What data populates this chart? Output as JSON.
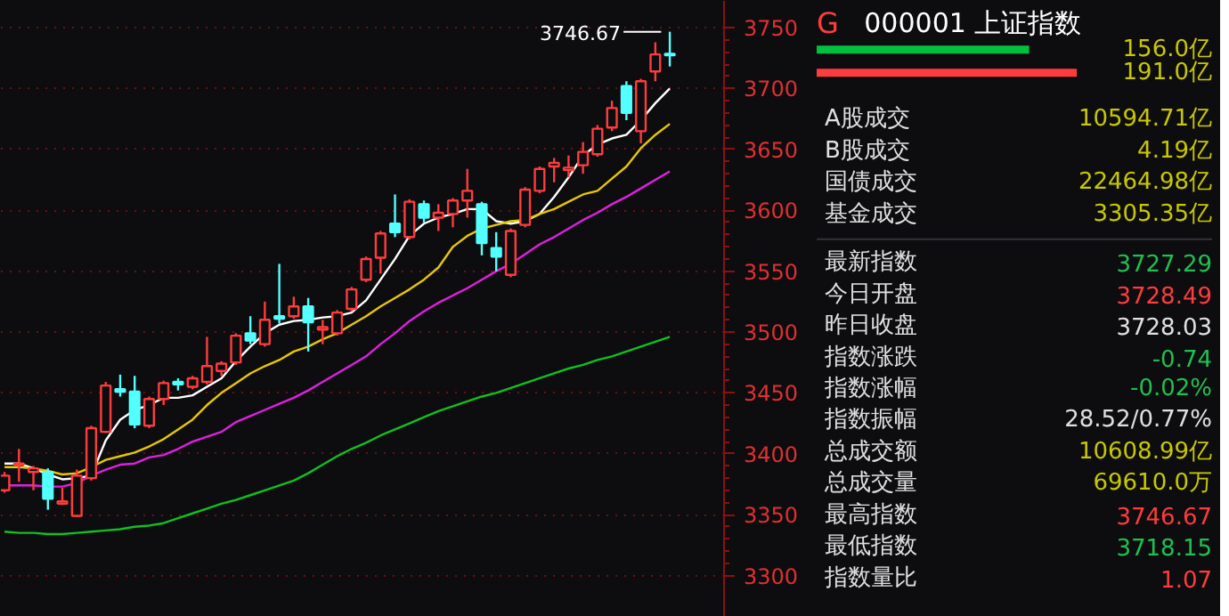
{
  "chart_data": [
    {
      "type": "candlestick",
      "categories": [
        null,
        null,
        null,
        null,
        null,
        null,
        null,
        null,
        null,
        null,
        null,
        null,
        null,
        null,
        null,
        null,
        null,
        null,
        null,
        null,
        null,
        null,
        null,
        null,
        null,
        null,
        null,
        null,
        null,
        null,
        null,
        null,
        null,
        null,
        null,
        null,
        null,
        null,
        null,
        null,
        null,
        null,
        null,
        null,
        null,
        null,
        null
      ],
      "ohlc": [
        [
          3370,
          3385,
          3368,
          3382
        ],
        [
          3391,
          3404,
          3377,
          3392
        ],
        [
          3385,
          3390,
          3370,
          3388
        ],
        [
          3385,
          3388,
          3354,
          3363
        ],
        [
          3359,
          3372,
          3358,
          3361
        ],
        [
          3349,
          3387,
          3348,
          3382
        ],
        [
          3380,
          3423,
          3378,
          3421
        ],
        [
          3418,
          3459,
          3417,
          3456
        ],
        [
          3453,
          3465,
          3447,
          3451
        ],
        [
          3451,
          3464,
          3421,
          3424
        ],
        [
          3423,
          3447,
          3421,
          3445
        ],
        [
          3445,
          3460,
          3440,
          3458
        ],
        [
          3459,
          3462,
          3452,
          3457
        ],
        [
          3455,
          3464,
          3453,
          3462
        ],
        [
          3459,
          3496,
          3457,
          3472
        ],
        [
          3468,
          3476,
          3464,
          3474
        ],
        [
          3475,
          3499,
          3473,
          3497
        ],
        [
          3499,
          3513,
          3490,
          3493
        ],
        [
          3490,
          3525,
          3488,
          3510
        ],
        [
          3513,
          3556,
          3507,
          3511
        ],
        [
          3513,
          3529,
          3511,
          3521
        ],
        [
          3521,
          3528,
          3484,
          3508
        ],
        [
          3502,
          3510,
          3490,
          3504
        ],
        [
          3499,
          3518,
          3497,
          3516
        ],
        [
          3519,
          3537,
          3517,
          3535
        ],
        [
          3543,
          3562,
          3541,
          3560
        ],
        [
          3561,
          3583,
          3548,
          3581
        ],
        [
          3589,
          3613,
          3578,
          3582
        ],
        [
          3578,
          3609,
          3576,
          3607
        ],
        [
          3605,
          3608,
          3590,
          3594
        ],
        [
          3594,
          3605,
          3583,
          3598
        ],
        [
          3597,
          3610,
          3586,
          3608
        ],
        [
          3608,
          3634,
          3594,
          3616
        ],
        [
          3605,
          3607,
          3563,
          3573
        ],
        [
          3569,
          3582,
          3550,
          3562
        ],
        [
          3547,
          3585,
          3545,
          3583
        ],
        [
          3588,
          3619,
          3586,
          3617
        ],
        [
          3616,
          3636,
          3614,
          3634
        ],
        [
          3636,
          3643,
          3623,
          3639
        ],
        [
          3633,
          3645,
          3627,
          3635
        ],
        [
          3637,
          3656,
          3630,
          3648
        ],
        [
          3646,
          3670,
          3644,
          3667
        ],
        [
          3668,
          3690,
          3665,
          3684
        ],
        [
          3702,
          3706,
          3674,
          3680
        ],
        [
          3665,
          3708,
          3655,
          3706
        ],
        [
          3714,
          3738,
          3706,
          3728
        ],
        [
          3728.49,
          3746.67,
          3718.15,
          3727.29
        ]
      ],
      "colors": [
        "#ff3c3c",
        "#ff3c3c",
        "#ff3c3c",
        "#54ffff",
        "#ff3c3c",
        "#ff3c3c",
        "#ff3c3c",
        "#ff3c3c",
        "#54ffff",
        "#54ffff",
        "#ff3c3c",
        "#ff3c3c",
        "#54ffff",
        "#ff3c3c",
        "#ff3c3c",
        "#ff3c3c",
        "#ff3c3c",
        "#54ffff",
        "#ff3c3c",
        "#54ffff",
        "#ff3c3c",
        "#54ffff",
        "#ff3c3c",
        "#ff3c3c",
        "#ff3c3c",
        "#ff3c3c",
        "#ff3c3c",
        "#54ffff",
        "#ff3c3c",
        "#54ffff",
        "#ff3c3c",
        "#ff3c3c",
        "#ff3c3c",
        "#54ffff",
        "#54ffff",
        "#ff3c3c",
        "#ff3c3c",
        "#ff3c3c",
        "#ff3c3c",
        "#ff3c3c",
        "#ff3c3c",
        "#ff3c3c",
        "#ff3c3c",
        "#54ffff",
        "#ff3c3c",
        "#ff3c3c",
        "#54ffff"
      ],
      "series": [
        {
          "type": "line",
          "color": "#ffffff",
          "values": [
            3392,
            3392,
            3388,
            3383,
            3379,
            3380,
            3382,
            3411,
            3428,
            3436,
            3440,
            3446,
            3446,
            3448,
            3455,
            3462,
            3476,
            3488,
            3499,
            3506,
            3509,
            3510,
            3512,
            3513,
            3516,
            3526,
            3543,
            3560,
            3579,
            3589,
            3594,
            3597,
            3601,
            3601,
            3591,
            3589,
            3591,
            3597,
            3611,
            3627,
            3645,
            3654,
            3659,
            3662,
            3674,
            3688,
            3700
          ]
        },
        {
          "type": "line",
          "color": "#e8c800",
          "values": [
            3389,
            3389,
            3388,
            3386,
            3383,
            3384,
            3389,
            3395,
            3398,
            3401,
            3406,
            3412,
            3420,
            3428,
            3440,
            3450,
            3458,
            3466,
            3472,
            3477,
            3484,
            3488,
            3494,
            3499,
            3506,
            3513,
            3521,
            3528,
            3535,
            3543,
            3553,
            3570,
            3579,
            3585,
            3588,
            3591,
            3592,
            3597,
            3601,
            3607,
            3613,
            3616,
            3626,
            3636,
            3651,
            3662,
            3671
          ]
        },
        {
          "type": "line",
          "color": "#e020e0",
          "values": [
            3374,
            3374,
            3374,
            3373,
            3373,
            3376,
            3382,
            3387,
            3391,
            3392,
            3397,
            3399,
            3404,
            3410,
            3414,
            3418,
            3426,
            3431,
            3436,
            3441,
            3446,
            3452,
            3459,
            3466,
            3473,
            3480,
            3490,
            3499,
            3509,
            3517,
            3524,
            3530,
            3536,
            3543,
            3550,
            3556,
            3564,
            3572,
            3578,
            3585,
            3592,
            3598,
            3605,
            3611,
            3618,
            3625,
            3632
          ]
        },
        {
          "type": "line",
          "color": "#10c020",
          "values": [
            3336,
            3335,
            3335,
            3334,
            3334,
            3335,
            3336,
            3337,
            3338,
            3340,
            3341,
            3343,
            3347,
            3351,
            3355,
            3359,
            3362,
            3366,
            3370,
            3374,
            3378,
            3384,
            3391,
            3398,
            3404,
            3409,
            3415,
            3420,
            3425,
            3430,
            3435,
            3439,
            3443,
            3447,
            3450,
            3454,
            3458,
            3462,
            3466,
            3470,
            3473,
            3477,
            3480,
            3484,
            3488,
            3492,
            3496
          ]
        }
      ],
      "ylim": [
        3266,
        3772
      ],
      "yticks": [
        3300,
        3350,
        3400,
        3450,
        3500,
        3550,
        3600,
        3650,
        3700,
        3750
      ],
      "grid": "y",
      "tick_labels": "y",
      "annotations": [
        "3746.67"
      ]
    },
    {
      "type": "bar",
      "orientation": "horizontal",
      "title": "000001 上证指数",
      "annotations": [
        "G"
      ],
      "categories": [
        null,
        null
      ],
      "values": [
        156.0,
        191.0
      ],
      "colors": [
        "#00c040",
        "#ff3c3c"
      ],
      "value_labels": [
        "156.0亿",
        "191.0亿"
      ]
    },
    {
      "type": "other",
      "categories": [
        "A股成交",
        "B股成交",
        "国债成交",
        "基金成交",
        "最新指数",
        "今日开盘",
        "昨日收盘",
        "指数涨跌",
        "指数涨幅",
        "指数振幅",
        "总成交额",
        "总成交量",
        "最高指数",
        "最低指数",
        "指数量比"
      ],
      "value_labels": [
        "10594.71亿",
        "4.19亿",
        "22464.98亿",
        "3305.35亿",
        "3727.29",
        "3728.49",
        "3728.03",
        "-0.74",
        "-0.02%",
        "28.52/0.77%",
        "10608.99亿",
        "69610.0万",
        "3746.67",
        "3718.15",
        "1.07"
      ],
      "colors": [
        "#c8c800",
        "#c8c800",
        "#c8c800",
        "#c8c800",
        "#20c050",
        "#ff3c3c",
        "#e0e0e0",
        "#20c050",
        "#20c050",
        "#e0e0e0",
        "#c8c800",
        "#c8c800",
        "#ff3c3c",
        "#20c050",
        "#ff3c3c"
      ]
    }
  ]
}
